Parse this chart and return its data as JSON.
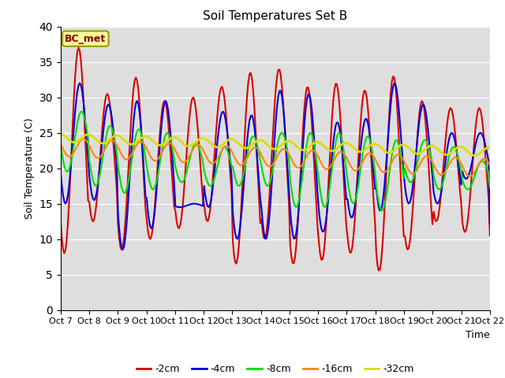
{
  "title": "Soil Temperatures Set B",
  "xlabel": "Time",
  "ylabel": "Soil Temperature (C)",
  "annotation": "BC_met",
  "ylim": [
    0,
    40
  ],
  "yticks": [
    0,
    5,
    10,
    15,
    20,
    25,
    30,
    35,
    40
  ],
  "xtick_labels": [
    "Oct 7",
    "Oct 8",
    "Oct 9",
    "Oct 10",
    "Oct 11",
    "Oct 12",
    "Oct 13",
    "Oct 14",
    "Oct 15",
    "Oct 16",
    "Oct 17",
    "Oct 18",
    "Oct 19",
    "Oct 20",
    "Oct 21",
    "Oct 22"
  ],
  "series": {
    "-2cm": {
      "color": "#dd0000",
      "lw": 1.5
    },
    "-4cm": {
      "color": "#0000dd",
      "lw": 1.5
    },
    "-8cm": {
      "color": "#00dd00",
      "lw": 1.5
    },
    "-16cm": {
      "color": "#ff8800",
      "lw": 1.5
    },
    "-32cm": {
      "color": "#dddd00",
      "lw": 2.0
    }
  },
  "background_color": "#dedede",
  "figure_color": "#ffffff",
  "grid_color": "#ffffff",
  "peaks_2cm": [
    37.0,
    30.5,
    32.8,
    29.5,
    30.0,
    31.5,
    33.5,
    34.0,
    31.5,
    32.0,
    31.0,
    33.0,
    29.5,
    28.5,
    28.5,
    10.5
  ],
  "troughs_2cm": [
    8.0,
    12.5,
    8.5,
    10.0,
    11.5,
    12.5,
    6.5,
    10.0,
    6.5,
    7.0,
    8.0,
    5.5,
    8.5,
    12.5,
    11.0,
    10.5
  ],
  "peaks_4cm": [
    32.0,
    29.0,
    29.5,
    29.5,
    15.0,
    28.0,
    27.5,
    31.0,
    30.5,
    26.5,
    27.0,
    32.0,
    29.0,
    25.0,
    25.0,
    12.5
  ],
  "troughs_4cm": [
    15.0,
    15.5,
    8.5,
    11.5,
    14.5,
    14.5,
    10.0,
    10.0,
    10.0,
    11.0,
    13.0,
    14.0,
    15.0,
    15.0,
    18.5,
    12.0
  ],
  "peaks_8cm": [
    28.0,
    26.0,
    25.5,
    25.0,
    23.5,
    23.0,
    24.5,
    25.0,
    25.0,
    25.0,
    24.5,
    24.0,
    24.0,
    23.0,
    21.0,
    19.5
  ],
  "troughs_8cm": [
    19.5,
    17.5,
    16.5,
    17.0,
    18.0,
    17.5,
    17.5,
    17.5,
    14.5,
    14.5,
    15.0,
    14.0,
    18.0,
    17.0,
    17.0,
    15.5
  ],
  "peak_phase_2cm": 0.38,
  "peak_phase_4cm": 0.42,
  "peak_phase_8cm": 0.48
}
